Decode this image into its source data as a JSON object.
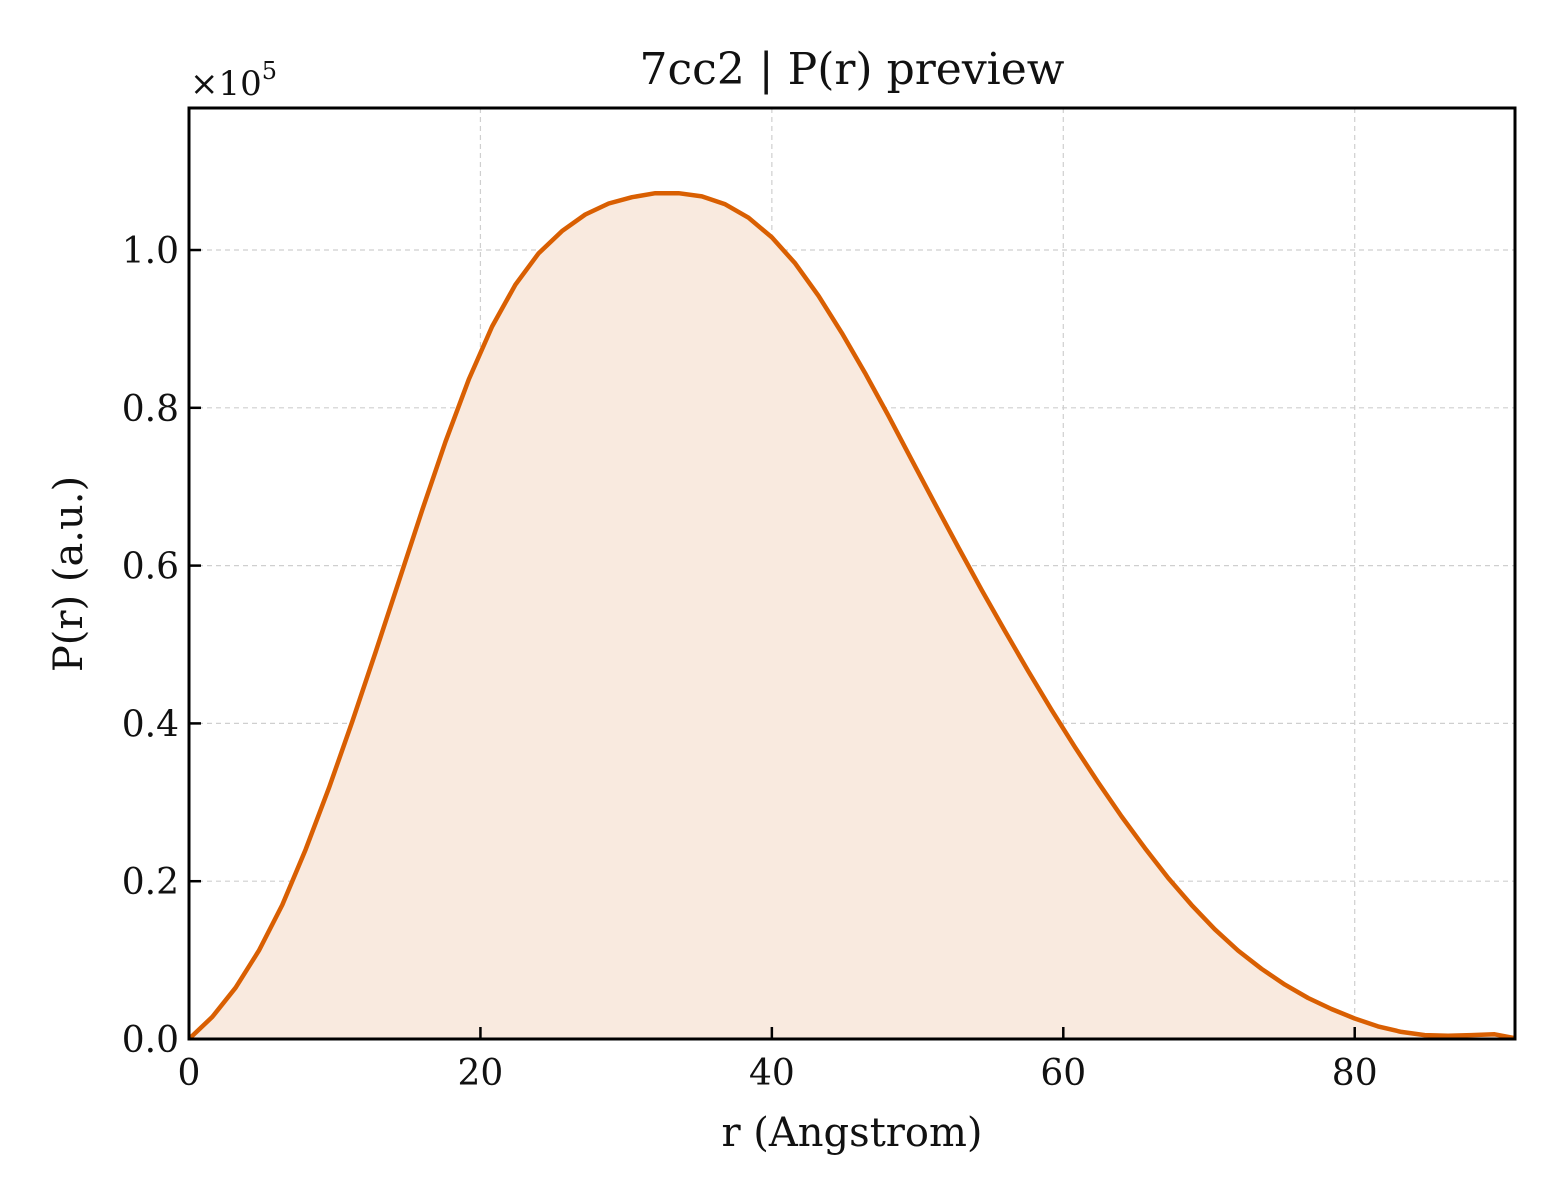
{
  "chart_data": {
    "type": "area",
    "title": "7cc2 | P(r) preview",
    "xlabel": "r (Angstrom)",
    "ylabel": "P(r) (a.u.)",
    "y_multiplier_label": "×10",
    "y_multiplier_exponent": "5",
    "xlim": [
      0,
      91
    ],
    "ylim": [
      0,
      1.18
    ],
    "y_scale": 100000,
    "xticks": [
      0,
      20,
      40,
      60,
      80
    ],
    "xtick_labels": [
      "0",
      "20",
      "40",
      "60",
      "80"
    ],
    "yticks": [
      0.0,
      0.2,
      0.4,
      0.6,
      0.8,
      1.0
    ],
    "ytick_labels": [
      "0.0",
      "0.2",
      "0.4",
      "0.6",
      "0.8",
      "1.0"
    ],
    "grid": true,
    "line_color": "#d95f02",
    "fill_color": "#f9eadf",
    "series": [
      {
        "x": [
          0,
          1.6,
          3.2,
          4.8,
          6.4,
          8.0,
          9.6,
          11.2,
          12.8,
          14.4,
          16.0,
          17.6,
          19.2,
          20.8,
          22.4,
          24.0,
          25.6,
          27.2,
          28.8,
          30.4,
          32.0,
          33.6,
          35.2,
          36.8,
          38.4,
          40.0,
          41.6,
          43.2,
          44.8,
          46.4,
          48.0,
          49.6,
          51.2,
          52.8,
          54.4,
          56.0,
          57.6,
          59.2,
          60.8,
          62.4,
          64.0,
          65.6,
          67.2,
          68.8,
          70.4,
          72.0,
          73.6,
          75.2,
          76.8,
          78.4,
          80.0,
          81.6,
          83.2,
          84.8,
          86.4,
          88.0,
          89.6,
          91.0
        ],
        "values": [
          0.0,
          0.028,
          0.065,
          0.112,
          0.17,
          0.24,
          0.318,
          0.402,
          0.49,
          0.58,
          0.67,
          0.757,
          0.836,
          0.903,
          0.956,
          0.996,
          1.024,
          1.045,
          1.059,
          1.067,
          1.072,
          1.072,
          1.068,
          1.058,
          1.041,
          1.016,
          0.983,
          0.942,
          0.895,
          0.844,
          0.79,
          0.734,
          0.678,
          0.623,
          0.569,
          0.517,
          0.466,
          0.417,
          0.37,
          0.325,
          0.282,
          0.242,
          0.204,
          0.17,
          0.139,
          0.112,
          0.089,
          0.069,
          0.052,
          0.038,
          0.026,
          0.016,
          0.009,
          0.005,
          0.004,
          0.005,
          0.006,
          0.001
        ]
      }
    ]
  }
}
